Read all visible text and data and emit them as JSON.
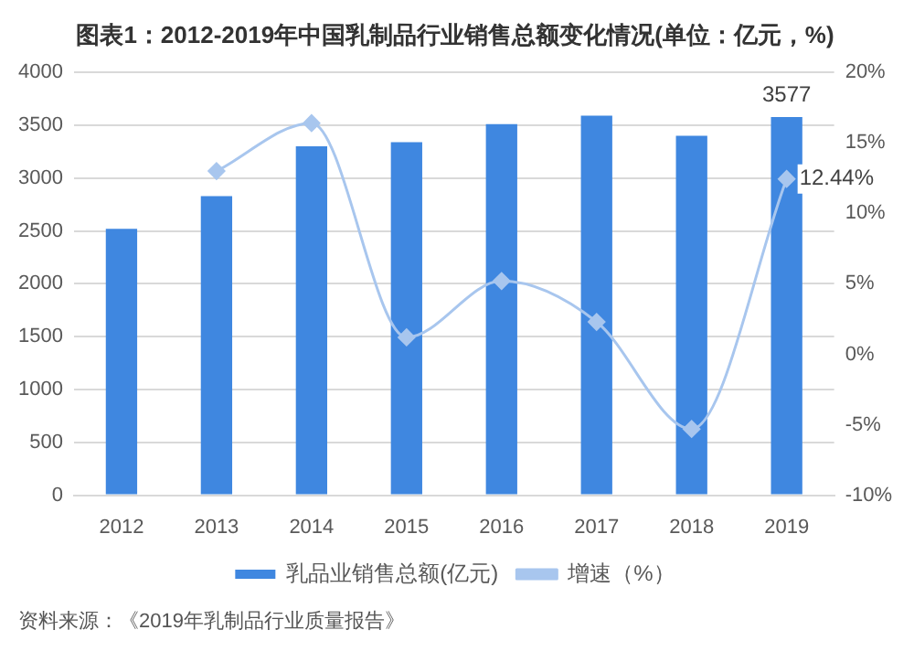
{
  "chart_data": {
    "type": "bar",
    "title": "图表1：2012-2019年中国乳制品行业销售总额变化情况(单位：亿元，%)",
    "categories": [
      "2012",
      "2013",
      "2014",
      "2015",
      "2016",
      "2017",
      "2018",
      "2019"
    ],
    "series": [
      {
        "name": "乳品业销售总额(亿元)",
        "color": "#3f87e0",
        "values": [
          2520,
          2830,
          3300,
          3340,
          3510,
          3590,
          3400,
          3577
        ],
        "value_labels": [
          null,
          null,
          null,
          null,
          null,
          null,
          null,
          "3577"
        ]
      },
      {
        "name": "增速（%）",
        "type": "line",
        "axis": "y2",
        "color": "#a8c6ee",
        "values": [
          null,
          13.0,
          16.4,
          1.2,
          5.2,
          2.3,
          -5.3,
          12.44
        ],
        "value_labels": [
          null,
          null,
          null,
          null,
          null,
          null,
          null,
          "12.44%"
        ]
      }
    ],
    "ylim": [
      0,
      4000
    ],
    "yticks": [
      0,
      500,
      1000,
      1500,
      2000,
      2500,
      3000,
      3500,
      4000
    ],
    "y2lim": [
      -10,
      20
    ],
    "y2ticks": [
      {
        "value": -10,
        "label": "-10%"
      },
      {
        "value": -5,
        "label": "-5%"
      },
      {
        "value": 0,
        "label": "0%"
      },
      {
        "value": 5,
        "label": "5%"
      },
      {
        "value": 10,
        "label": "10%"
      },
      {
        "value": 15,
        "label": "15%"
      },
      {
        "value": 20,
        "label": "20%"
      }
    ],
    "grid": "y",
    "legend": "bottom",
    "marker": "diamond",
    "line_style": "solid",
    "annotations": [
      "资料来源：《2019年乳制品行业质量报告》"
    ]
  }
}
